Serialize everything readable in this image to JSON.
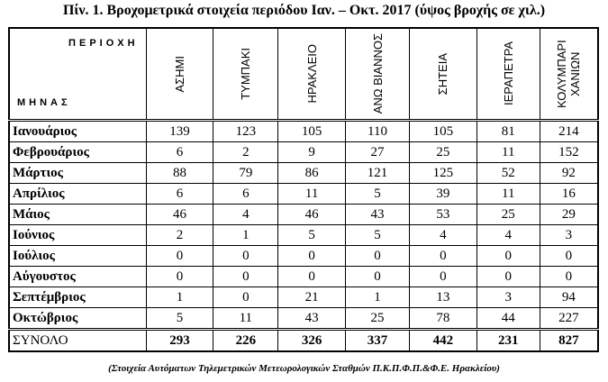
{
  "title": "Πίν. 1. Βροχομετρικά στοιχεία περιόδου Ιαν. – Οκτ.  2017 (ύψος βροχής σε χιλ.)",
  "table": {
    "corner_top": "ΠΕΡΙΟΧΗ",
    "corner_bottom": "ΜΗΝΑΣ",
    "columns": [
      "ΑΣΗΜΙ",
      "ΤΥΜΠΑΚΙ",
      "ΗΡΑΚΛΕΙΟ",
      "ΑΝΩ ΒΙΑΝΝΟΣ",
      "ΣΗΤΕΙΑ",
      "ΙΕΡΑΠΕΤΡΑ",
      "ΚΟΛΥΜΠΑΡΙ ΧΑΝΙΩΝ"
    ],
    "rows": [
      {
        "month": "Ιανουάριος",
        "values": [
          139,
          123,
          105,
          110,
          105,
          81,
          214
        ]
      },
      {
        "month": "Φεβρουάριος",
        "values": [
          6,
          2,
          9,
          27,
          25,
          11,
          152
        ]
      },
      {
        "month": "Μάρτιος",
        "values": [
          88,
          79,
          86,
          121,
          125,
          52,
          92
        ]
      },
      {
        "month": "Απρίλιος",
        "values": [
          6,
          6,
          11,
          5,
          39,
          11,
          16
        ]
      },
      {
        "month": "Μάιος",
        "values": [
          46,
          4,
          46,
          43,
          53,
          25,
          29
        ]
      },
      {
        "month": "Ιούνιος",
        "values": [
          2,
          1,
          5,
          5,
          4,
          4,
          3
        ]
      },
      {
        "month": "Ιούλιος",
        "values": [
          0,
          0,
          0,
          0,
          0,
          0,
          0
        ]
      },
      {
        "month": "Αύγουστος",
        "values": [
          0,
          0,
          0,
          0,
          0,
          0,
          0
        ]
      },
      {
        "month": "Σεπτέμβριος",
        "values": [
          1,
          0,
          21,
          1,
          13,
          3,
          94
        ]
      },
      {
        "month": "Οκτώβριος",
        "values": [
          5,
          11,
          43,
          25,
          78,
          44,
          227
        ]
      }
    ],
    "total": {
      "label": "ΣΥΝΟΛΟ",
      "values": [
        293,
        226,
        326,
        337,
        442,
        231,
        827
      ]
    }
  },
  "footnote": "(Στοιχεία Αυτόματων Τηλεμετρικών Μετεωρολογικών Σταθμών Π.Κ.Π.Φ.Π.&Φ.Ε.  Ηρακλείου)"
}
